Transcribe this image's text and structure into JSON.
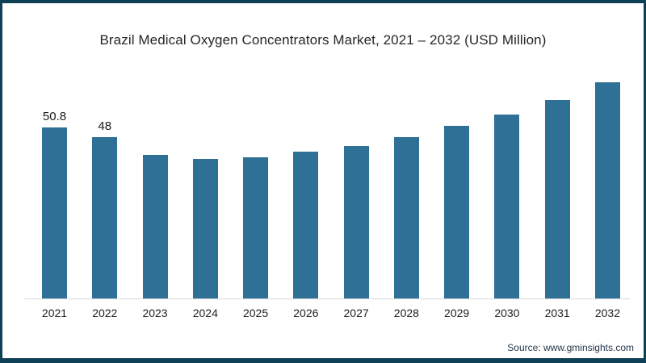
{
  "frame": {
    "border_color": "#0f4156",
    "background_color": "#ffffff"
  },
  "chart_data": {
    "type": "bar",
    "title": "Brazil Medical Oxygen Concentrators Market, 2021 – 2032 (USD Million)",
    "categories": [
      "2021",
      "2022",
      "2023",
      "2024",
      "2025",
      "2026",
      "2027",
      "2028",
      "2029",
      "2030",
      "2031",
      "2032"
    ],
    "values": [
      50.8,
      48,
      42.7,
      41.5,
      41.9,
      43.6,
      45.3,
      47.9,
      51.3,
      54.6,
      58.9,
      64.2
    ],
    "data_labels": [
      "50.8",
      "48",
      "",
      "",
      "",
      "",
      "",
      "",
      "",
      "",
      "",
      ""
    ],
    "bar_color": "#2e7096",
    "axis_color": "#d9d9d9",
    "xlabel": "",
    "ylabel": "",
    "ylim": [
      0,
      64.2
    ],
    "grid": false,
    "legend": "none"
  },
  "source": {
    "text": "Source: www.gminsights.com"
  }
}
